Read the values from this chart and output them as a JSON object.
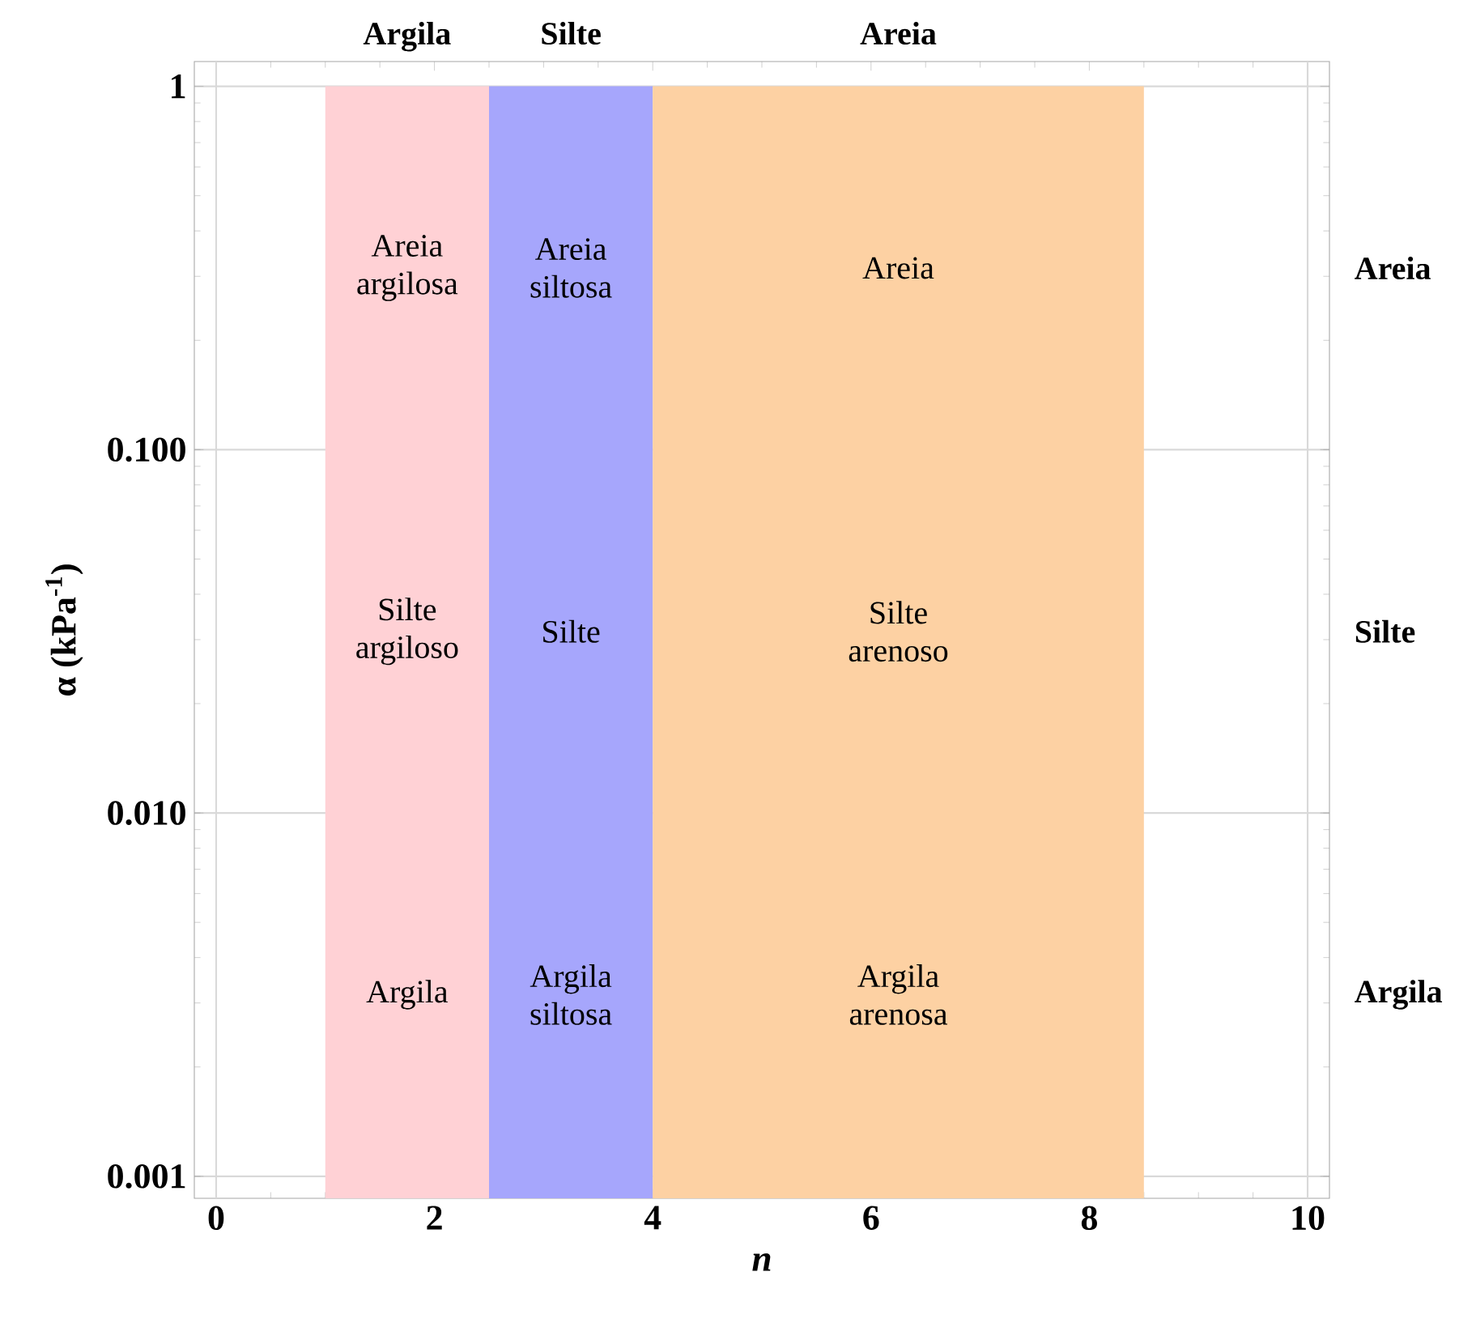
{
  "chart_data": {
    "type": "area",
    "xlabel": "n",
    "ylabel": "α (kPa$^{-1}$)",
    "xlim": [
      -0.2,
      10.2
    ],
    "ylim": [
      0.00087,
      1.17
    ],
    "xticks": [
      0,
      2,
      4,
      6,
      8,
      10
    ],
    "yticks": [
      {
        "value": 0.001,
        "label": "0.001"
      },
      {
        "value": 0.01,
        "label": "0.010"
      },
      {
        "value": 0.1,
        "label": "0.100"
      },
      1
    ],
    "log": "y",
    "grid": "y",
    "series": [
      {
        "name": "Argila",
        "color": "#ffd1d5",
        "x": [
          1,
          2.5
        ],
        "values": [
          1,
          1
        ]
      },
      {
        "name": "Silte",
        "color": "#a6a6fc",
        "x": [
          2.5,
          4
        ],
        "values": [
          1,
          1
        ]
      },
      {
        "name": "Areia",
        "color": "#fdd1a3",
        "x": [
          4,
          8.5
        ],
        "values": [
          1,
          1
        ]
      }
    ],
    "ref_lines": [
      {
        "axis": "x",
        "value": 0,
        "color": "#d9d9d9"
      },
      {
        "axis": "x",
        "value": 10,
        "color": "#d9d9d9"
      }
    ],
    "annotations": [
      "Areia argilosa",
      "Areia siltosa",
      "Areia",
      "Silte argiloso",
      "Silte",
      "Silte arenoso",
      "Argila",
      "Argila siltosa",
      "Argila arenosa",
      "Areia",
      "Silte",
      "Argila"
    ]
  }
}
